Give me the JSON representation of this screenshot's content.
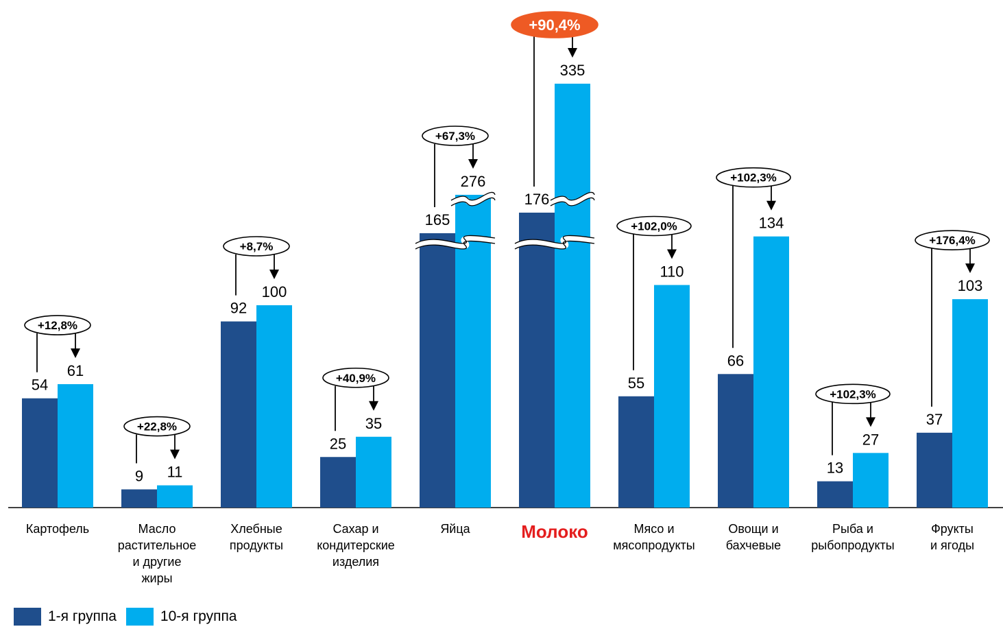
{
  "chart_data": {
    "type": "bar",
    "categories": [
      [
        "Картофель"
      ],
      [
        "Масло",
        "растительное",
        "и другие",
        "жиры"
      ],
      [
        "Хлебные",
        "продукты"
      ],
      [
        "Сахар и",
        "кондитерские",
        "изделия"
      ],
      [
        "Яйца"
      ],
      [
        "Молоко"
      ],
      [
        "Мясо и",
        "мясопродукты"
      ],
      [
        "Овощи и",
        "бахчевые"
      ],
      [
        "Рыба и",
        "рыбопродукты"
      ],
      [
        "Фрукты",
        "и ягоды"
      ]
    ],
    "highlight_category_index": 5,
    "series": [
      {
        "name": "1-я группа",
        "color": "#1f4e8c",
        "values": [
          54,
          9,
          92,
          25,
          165,
          176,
          55,
          66,
          13,
          37
        ]
      },
      {
        "name": "10-я группа",
        "color": "#00adee",
        "values": [
          61,
          11,
          100,
          35,
          276,
          335,
          110,
          134,
          27,
          103
        ]
      }
    ],
    "changes": [
      "+12,8%",
      "+22,8%",
      "+8,7%",
      "+40,9%",
      "+67,3%",
      "+90,4%",
      "+102,0%",
      "+102,3%",
      "+102,3%",
      "+176,4%"
    ],
    "highlight_change_index": 5,
    "axis_breaks": [
      4,
      5
    ],
    "highlight_color": "#e41e1e",
    "badge_color": "#ee5a24",
    "legend_position": "bottom-left"
  }
}
